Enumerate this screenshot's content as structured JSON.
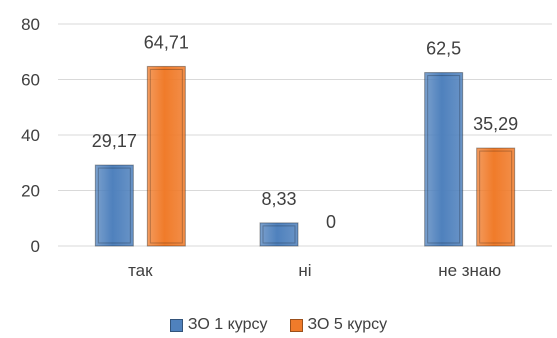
{
  "chart_data": {
    "type": "bar",
    "categories": [
      "так",
      "ні",
      "не знаю"
    ],
    "series": [
      {
        "name": "ЗО 1 курсу",
        "values": [
          29.17,
          8.33,
          62.5
        ],
        "labels": [
          "29,17",
          "8,33",
          "62,5"
        ],
        "color": "#4f81bd"
      },
      {
        "name": "ЗО 5 курсу",
        "values": [
          64.71,
          0,
          35.29
        ],
        "labels": [
          "64,71",
          "0",
          "35,29"
        ],
        "color": "#f07b2a"
      }
    ],
    "yticks": [
      "0",
      "20",
      "40",
      "60",
      "80"
    ],
    "ylim": [
      0,
      80
    ],
    "grid": true,
    "legend": "bottom"
  }
}
